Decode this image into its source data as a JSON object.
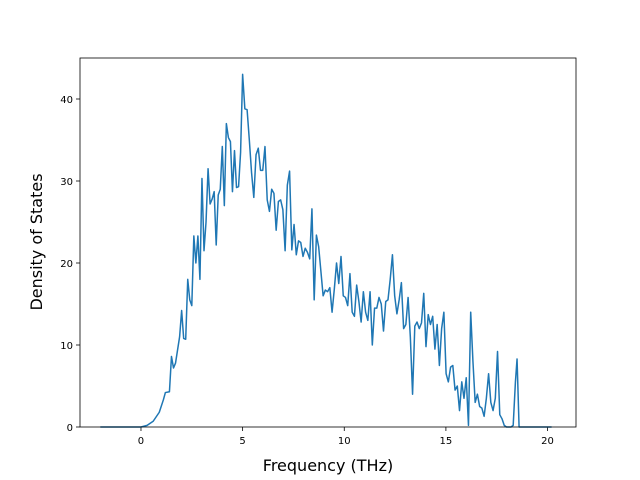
{
  "chart_data": {
    "type": "line",
    "x_label": "Frequency (THz)",
    "y_label": "Density of States",
    "xlim": [
      -3.0,
      21.4
    ],
    "ylim": [
      0,
      45
    ],
    "xticks": [
      0,
      5,
      10,
      15,
      20
    ],
    "yticks": [
      0,
      10,
      20,
      30,
      40
    ],
    "grid": false,
    "x": [
      -2,
      0,
      0.3,
      0.6,
      0.9,
      1.1,
      1.2,
      1.4,
      1.5,
      1.6,
      1.7,
      1.9,
      2.0,
      2.1,
      2.2,
      2.3,
      2.4,
      2.5,
      2.6,
      2.7,
      2.8,
      2.9,
      3.0,
      3.1,
      3.2,
      3.3,
      3.4,
      3.5,
      3.6,
      3.7,
      3.8,
      3.9,
      4.0,
      4.1,
      4.2,
      4.3,
      4.4,
      4.5,
      4.6,
      4.7,
      4.8,
      4.9,
      5.0,
      5.11,
      5.22,
      5.33,
      5.44,
      5.55,
      5.66,
      5.77,
      5.88,
      5.99,
      6.1,
      6.21,
      6.32,
      6.43,
      6.54,
      6.65,
      6.76,
      6.87,
      6.98,
      7.09,
      7.2,
      7.31,
      7.42,
      7.53,
      7.64,
      7.75,
      7.86,
      7.97,
      8.08,
      8.19,
      8.3,
      8.41,
      8.52,
      8.63,
      8.74,
      8.85,
      8.96,
      9.07,
      9.18,
      9.29,
      9.4,
      9.51,
      9.62,
      9.73,
      9.84,
      9.95,
      10.06,
      10.17,
      10.28,
      10.39,
      10.5,
      10.61,
      10.72,
      10.83,
      10.94,
      11.05,
      11.16,
      11.27,
      11.38,
      11.49,
      11.6,
      11.71,
      11.82,
      11.93,
      12.04,
      12.15,
      12.26,
      12.37,
      12.48,
      12.59,
      12.7,
      12.81,
      12.92,
      13.03,
      13.14,
      13.25,
      13.36,
      13.47,
      13.58,
      13.69,
      13.8,
      13.91,
      14.02,
      14.13,
      14.24,
      14.35,
      14.46,
      14.57,
      14.68,
      14.79,
      14.9,
      15.01,
      15.12,
      15.23,
      15.34,
      15.45,
      15.56,
      15.67,
      15.78,
      15.89,
      16.0,
      16.11,
      16.22,
      16.33,
      16.44,
      16.55,
      16.66,
      16.77,
      16.88,
      16.99,
      17.1,
      17.21,
      17.32,
      17.43,
      17.54,
      17.65,
      17.76,
      17.87,
      17.98,
      18.2,
      18.31,
      18.42,
      18.5,
      18.6,
      20.2
    ],
    "series": [
      {
        "color": "#1f77b4",
        "values": [
          0,
          0,
          0.2,
          0.7,
          1.8,
          3.3,
          4.2,
          4.3,
          8.6,
          7.2,
          7.8,
          11,
          14.2,
          10.8,
          10.7,
          18,
          15.5,
          14.8,
          23.3,
          20,
          23.3,
          18,
          30.3,
          21.5,
          25,
          31.5,
          27.2,
          27.8,
          28.7,
          22.2,
          28.3,
          29,
          34.2,
          27,
          37,
          35.3,
          34.8,
          28.7,
          33.7,
          29.2,
          29.3,
          33.5,
          43,
          38.8,
          38.7,
          35,
          31,
          28,
          33.2,
          34,
          31.3,
          31.3,
          34.2,
          27.7,
          26.3,
          29,
          28.5,
          24,
          27.5,
          27.7,
          26.5,
          21.5,
          29.5,
          31.2,
          21.6,
          24.7,
          21,
          22.7,
          22.5,
          20.8,
          21.8,
          21.3,
          20.5,
          26.6,
          15.5,
          23.4,
          22,
          19,
          16,
          16.7,
          16.5,
          17,
          14,
          16.8,
          20,
          17.5,
          20.8,
          16,
          15.8,
          14.8,
          18.7,
          14,
          13.5,
          17.3,
          15.3,
          12.8,
          16.5,
          14,
          13,
          16.5,
          10,
          14.5,
          14.5,
          15.8,
          15,
          11.7,
          15.3,
          15.5,
          18,
          21,
          16,
          13.8,
          15.5,
          17.6,
          12,
          12.5,
          15.8,
          11,
          4,
          12.3,
          12.8,
          12,
          12.7,
          16.3,
          9.8,
          13.7,
          12.5,
          13.5,
          9.5,
          12.5,
          7.5,
          12,
          14,
          6.5,
          5.5,
          7.3,
          7.5,
          4.5,
          5,
          2,
          5.5,
          3.5,
          6,
          0.2,
          14,
          8,
          3,
          4,
          2.5,
          2.3,
          1.3,
          3.5,
          6.5,
          3,
          2,
          3.5,
          9.2,
          1.5,
          1,
          0.2,
          0,
          0,
          0.2,
          5.5,
          8.3,
          0,
          0
        ]
      }
    ]
  }
}
